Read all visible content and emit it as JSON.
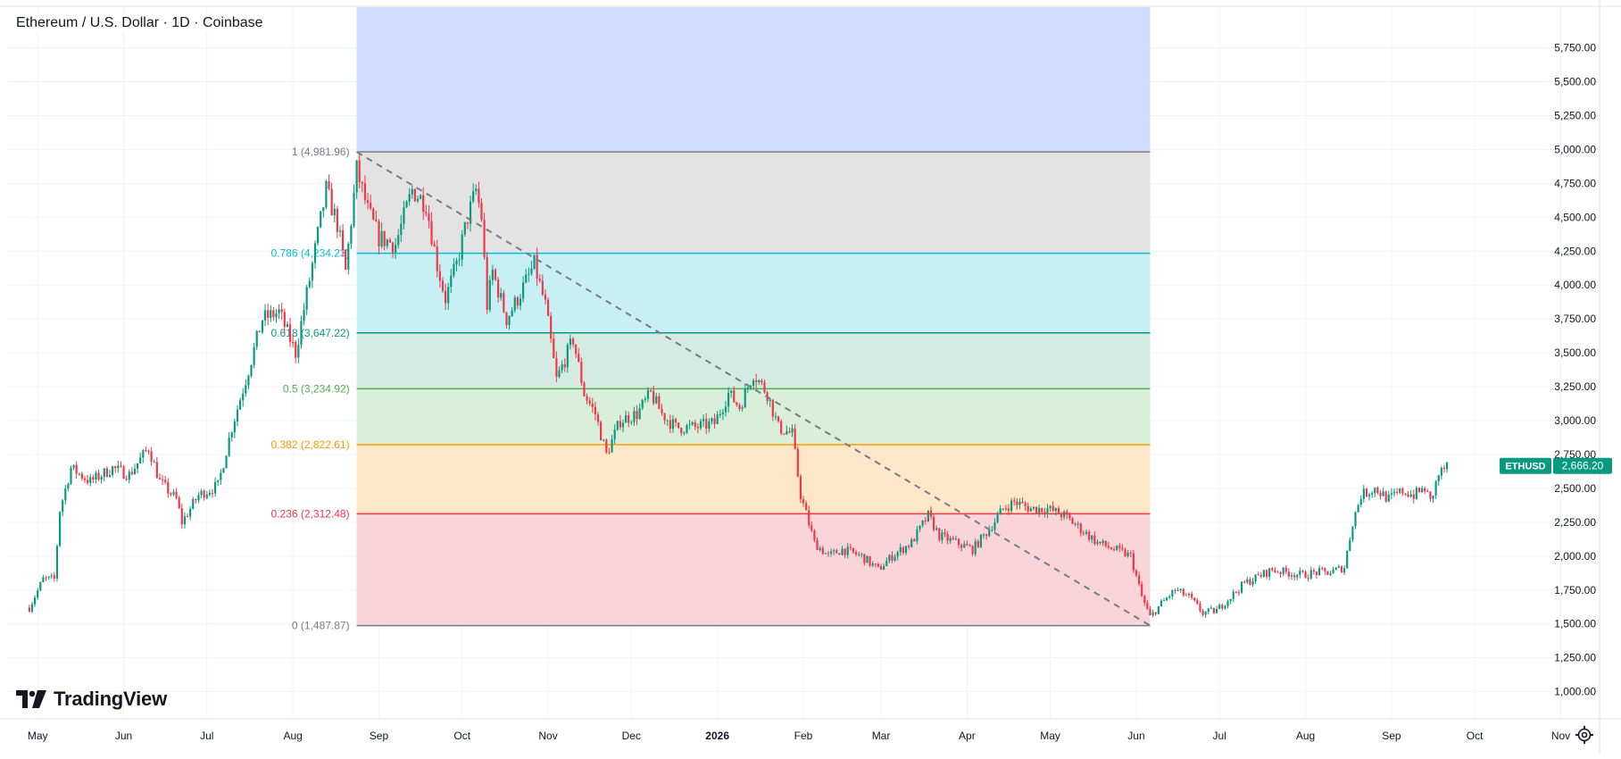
{
  "header": {
    "title": "Ethereum / U.S. Dollar · 1D · Coinbase"
  },
  "brand": {
    "name": "TradingView"
  },
  "colors": {
    "up": "#089981",
    "down": "#f23645",
    "grid": "#f0f3fa",
    "fib_above": "#d0dcfd",
    "fib_0786": "#e3e3e3",
    "fib_0618": "#c8f0f4",
    "fib_05": "#d3ebe3",
    "fib_0382": "#d9efda",
    "fib_0236": "#fde7c8",
    "fib_0": "#f9d5d9"
  },
  "icons": {
    "settings": "gear-icon",
    "logo": "tradingview-logo-icon"
  },
  "chart_data": {
    "type": "candlestick",
    "symbol": "ETHUSD",
    "last_price": 2666.2,
    "last_price_label": "2,666.20",
    "y_axis": {
      "range": [
        800,
        6050
      ],
      "ticks": [
        1000,
        1250,
        1500,
        1750,
        2000,
        2250,
        2500,
        2750,
        3000,
        3250,
        3500,
        3750,
        4000,
        4250,
        4500,
        4750,
        5000,
        5250,
        5500,
        5750
      ],
      "tick_labels": [
        "1,000.00",
        "1,250.00",
        "1,500.00",
        "1,750.00",
        "2,000.00",
        "2,250.00",
        "2,500.00",
        "2,750.00",
        "3,000.00",
        "3,250.00",
        "3,500.00",
        "3,750.00",
        "4,000.00",
        "4,250.00",
        "4,500.00",
        "4,750.00",
        "5,000.00",
        "5,250.00",
        "5,500.00",
        "5,750.00"
      ]
    },
    "x_axis": {
      "labels": [
        "May",
        "Jun",
        "Jul",
        "Aug",
        "Sep",
        "Oct",
        "Nov",
        "Dec",
        "2026",
        "Feb",
        "Mar",
        "Apr",
        "May",
        "Jun",
        "Jul",
        "Aug",
        "Sep",
        "Oct",
        "Nov"
      ],
      "bold": [
        false,
        false,
        false,
        false,
        false,
        false,
        false,
        false,
        true,
        false,
        false,
        false,
        false,
        false,
        false,
        false,
        false,
        false,
        false
      ]
    },
    "fib_levels": [
      {
        "ratio": "1",
        "value": 4981.96,
        "label": "1 (4,981.96)",
        "color": "#787b86",
        "fill": "#e3e3e3"
      },
      {
        "ratio": "0.786",
        "value": 4234.23,
        "label": "0.786 (4,234.23)",
        "color": "#00bcd4",
        "fill": "#c8f0f4"
      },
      {
        "ratio": "0.618",
        "value": 3647.22,
        "label": "0.618 (3,647.22)",
        "color": "#089981",
        "fill": "#d3ebe3"
      },
      {
        "ratio": "0.5",
        "value": 3234.92,
        "label": "0.5 (3,234.92)",
        "color": "#4caf50",
        "fill": "#d9efda"
      },
      {
        "ratio": "0.382",
        "value": 2822.61,
        "label": "0.382 (2,822.61)",
        "color": "#ff9800",
        "fill": "#fde7c8"
      },
      {
        "ratio": "0.236",
        "value": 2312.48,
        "label": "0.236 (2,312.48)",
        "color": "#f23645",
        "fill": "#f9d5d9"
      },
      {
        "ratio": "0",
        "value": 1487.87,
        "label": "0 (1,487.87)",
        "color": "#787b86",
        "fill": null
      }
    ],
    "fib_extension_fill": "#d0dcfd",
    "trend_line": {
      "from": {
        "date": "2025-08-24",
        "price": 4981.96
      },
      "to": {
        "date": "2026-06-06",
        "price": 1487.87
      }
    },
    "series": [
      {
        "name": "ETHUSD",
        "points": [
          [
            "2025-04-28",
            1620
          ],
          [
            "2025-05-03",
            1830
          ],
          [
            "2025-05-07",
            1830
          ],
          [
            "2025-05-09",
            2340
          ],
          [
            "2025-05-13",
            2650
          ],
          [
            "2025-05-20",
            2550
          ],
          [
            "2025-05-28",
            2650
          ],
          [
            "2025-06-03",
            2600
          ],
          [
            "2025-06-10",
            2800
          ],
          [
            "2025-06-14",
            2550
          ],
          [
            "2025-06-20",
            2420
          ],
          [
            "2025-06-22",
            2250
          ],
          [
            "2025-06-28",
            2450
          ],
          [
            "2025-07-05",
            2520
          ],
          [
            "2025-07-10",
            2950
          ],
          [
            "2025-07-15",
            3300
          ],
          [
            "2025-07-21",
            3750
          ],
          [
            "2025-07-27",
            3800
          ],
          [
            "2025-08-02",
            3500
          ],
          [
            "2025-08-08",
            4150
          ],
          [
            "2025-08-13",
            4700
          ],
          [
            "2025-08-17",
            4450
          ],
          [
            "2025-08-20",
            4100
          ],
          [
            "2025-08-24",
            4850
          ],
          [
            "2025-08-28",
            4550
          ],
          [
            "2025-09-01",
            4350
          ],
          [
            "2025-09-07",
            4300
          ],
          [
            "2025-09-13",
            4700
          ],
          [
            "2025-09-18",
            4600
          ],
          [
            "2025-09-22",
            4150
          ],
          [
            "2025-09-25",
            3900
          ],
          [
            "2025-09-29",
            4150
          ],
          [
            "2025-10-03",
            4500
          ],
          [
            "2025-10-06",
            4700
          ],
          [
            "2025-10-08",
            4500
          ],
          [
            "2025-10-10",
            3850
          ],
          [
            "2025-10-12",
            4100
          ],
          [
            "2025-10-17",
            3750
          ],
          [
            "2025-10-21",
            3900
          ],
          [
            "2025-10-27",
            4150
          ],
          [
            "2025-10-31",
            3850
          ],
          [
            "2025-11-04",
            3300
          ],
          [
            "2025-11-10",
            3600
          ],
          [
            "2025-11-14",
            3200
          ],
          [
            "2025-11-18",
            3050
          ],
          [
            "2025-11-22",
            2750
          ],
          [
            "2025-11-27",
            3000
          ],
          [
            "2025-12-03",
            3050
          ],
          [
            "2025-12-08",
            3200
          ],
          [
            "2025-12-12",
            3050
          ],
          [
            "2025-12-17",
            2950
          ],
          [
            "2025-12-24",
            2950
          ],
          [
            "2025-12-31",
            2980
          ],
          [
            "2026-01-05",
            3200
          ],
          [
            "2026-01-09",
            3100
          ],
          [
            "2026-01-14",
            3350
          ],
          [
            "2026-01-19",
            3200
          ],
          [
            "2026-01-23",
            2950
          ],
          [
            "2026-01-28",
            2900
          ],
          [
            "2026-01-31",
            2450
          ],
          [
            "2026-02-05",
            2100
          ],
          [
            "2026-02-10",
            2000
          ],
          [
            "2026-02-15",
            2050
          ],
          [
            "2026-02-22",
            2000
          ],
          [
            "2026-02-28",
            1900
          ],
          [
            "2026-03-05",
            2000
          ],
          [
            "2026-03-12",
            2100
          ],
          [
            "2026-03-18",
            2300
          ],
          [
            "2026-03-22",
            2150
          ],
          [
            "2026-03-28",
            2100
          ],
          [
            "2026-04-03",
            2050
          ],
          [
            "2026-04-09",
            2200
          ],
          [
            "2026-04-14",
            2350
          ],
          [
            "2026-04-18",
            2400
          ],
          [
            "2026-04-24",
            2350
          ],
          [
            "2026-04-30",
            2350
          ],
          [
            "2026-05-06",
            2300
          ],
          [
            "2026-05-12",
            2200
          ],
          [
            "2026-05-18",
            2100
          ],
          [
            "2026-05-24",
            2050
          ],
          [
            "2026-05-30",
            2000
          ],
          [
            "2026-06-03",
            1700
          ],
          [
            "2026-06-06",
            1550
          ],
          [
            "2026-06-10",
            1650
          ],
          [
            "2026-06-15",
            1750
          ],
          [
            "2026-06-20",
            1700
          ],
          [
            "2026-06-25",
            1580
          ],
          [
            "2026-06-30",
            1600
          ],
          [
            "2026-07-05",
            1700
          ],
          [
            "2026-07-10",
            1800
          ],
          [
            "2026-07-15",
            1850
          ],
          [
            "2026-07-20",
            1900
          ],
          [
            "2026-07-25",
            1880
          ],
          [
            "2026-07-31",
            1860
          ],
          [
            "2026-08-05",
            1880
          ],
          [
            "2026-08-10",
            1880
          ],
          [
            "2026-08-15",
            1920
          ],
          [
            "2026-08-18",
            2250
          ],
          [
            "2026-08-21",
            2450
          ],
          [
            "2026-08-26",
            2500
          ],
          [
            "2026-08-31",
            2420
          ],
          [
            "2026-09-05",
            2480
          ],
          [
            "2026-09-09",
            2450
          ],
          [
            "2026-09-13",
            2500
          ],
          [
            "2026-09-15",
            2400
          ],
          [
            "2026-09-18",
            2600
          ],
          [
            "2026-09-21",
            2666.2
          ]
        ]
      }
    ],
    "title": "Ethereum / U.S. Dollar · 1D · Coinbase",
    "grid": true
  }
}
